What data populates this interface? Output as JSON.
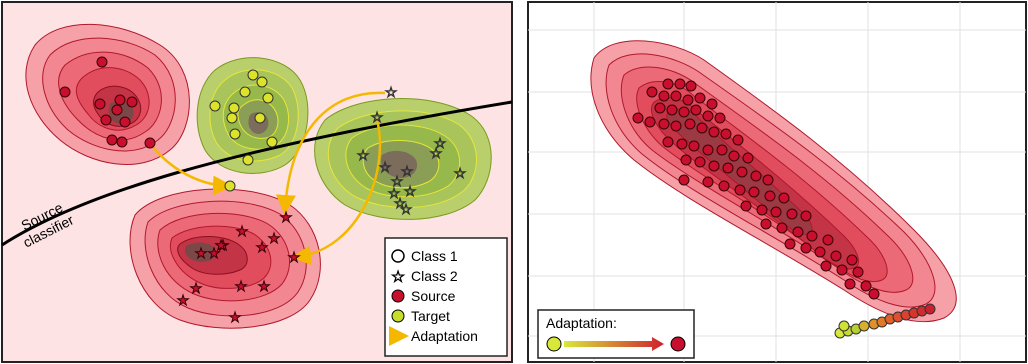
{
  "left_panel": {
    "classifier_label_line1": "Source",
    "classifier_label_line2": "classifier",
    "legend": {
      "class1": "Class 1",
      "class2": "Class 2",
      "source": "Source",
      "target": "Target",
      "adaptation": "Adaptation"
    }
  },
  "right_panel": {
    "legend_title": "Adaptation:"
  },
  "colors": {
    "source_fill": "#e8384f",
    "source_dark": "#7a1020",
    "source_point": "#c8102e",
    "target_fill": "#9bbf3a",
    "target_point": "#dde32a",
    "adaptation_arrow": "#f5b800",
    "left_background": "#fde3e3",
    "right_grid": "#dddddd"
  }
}
